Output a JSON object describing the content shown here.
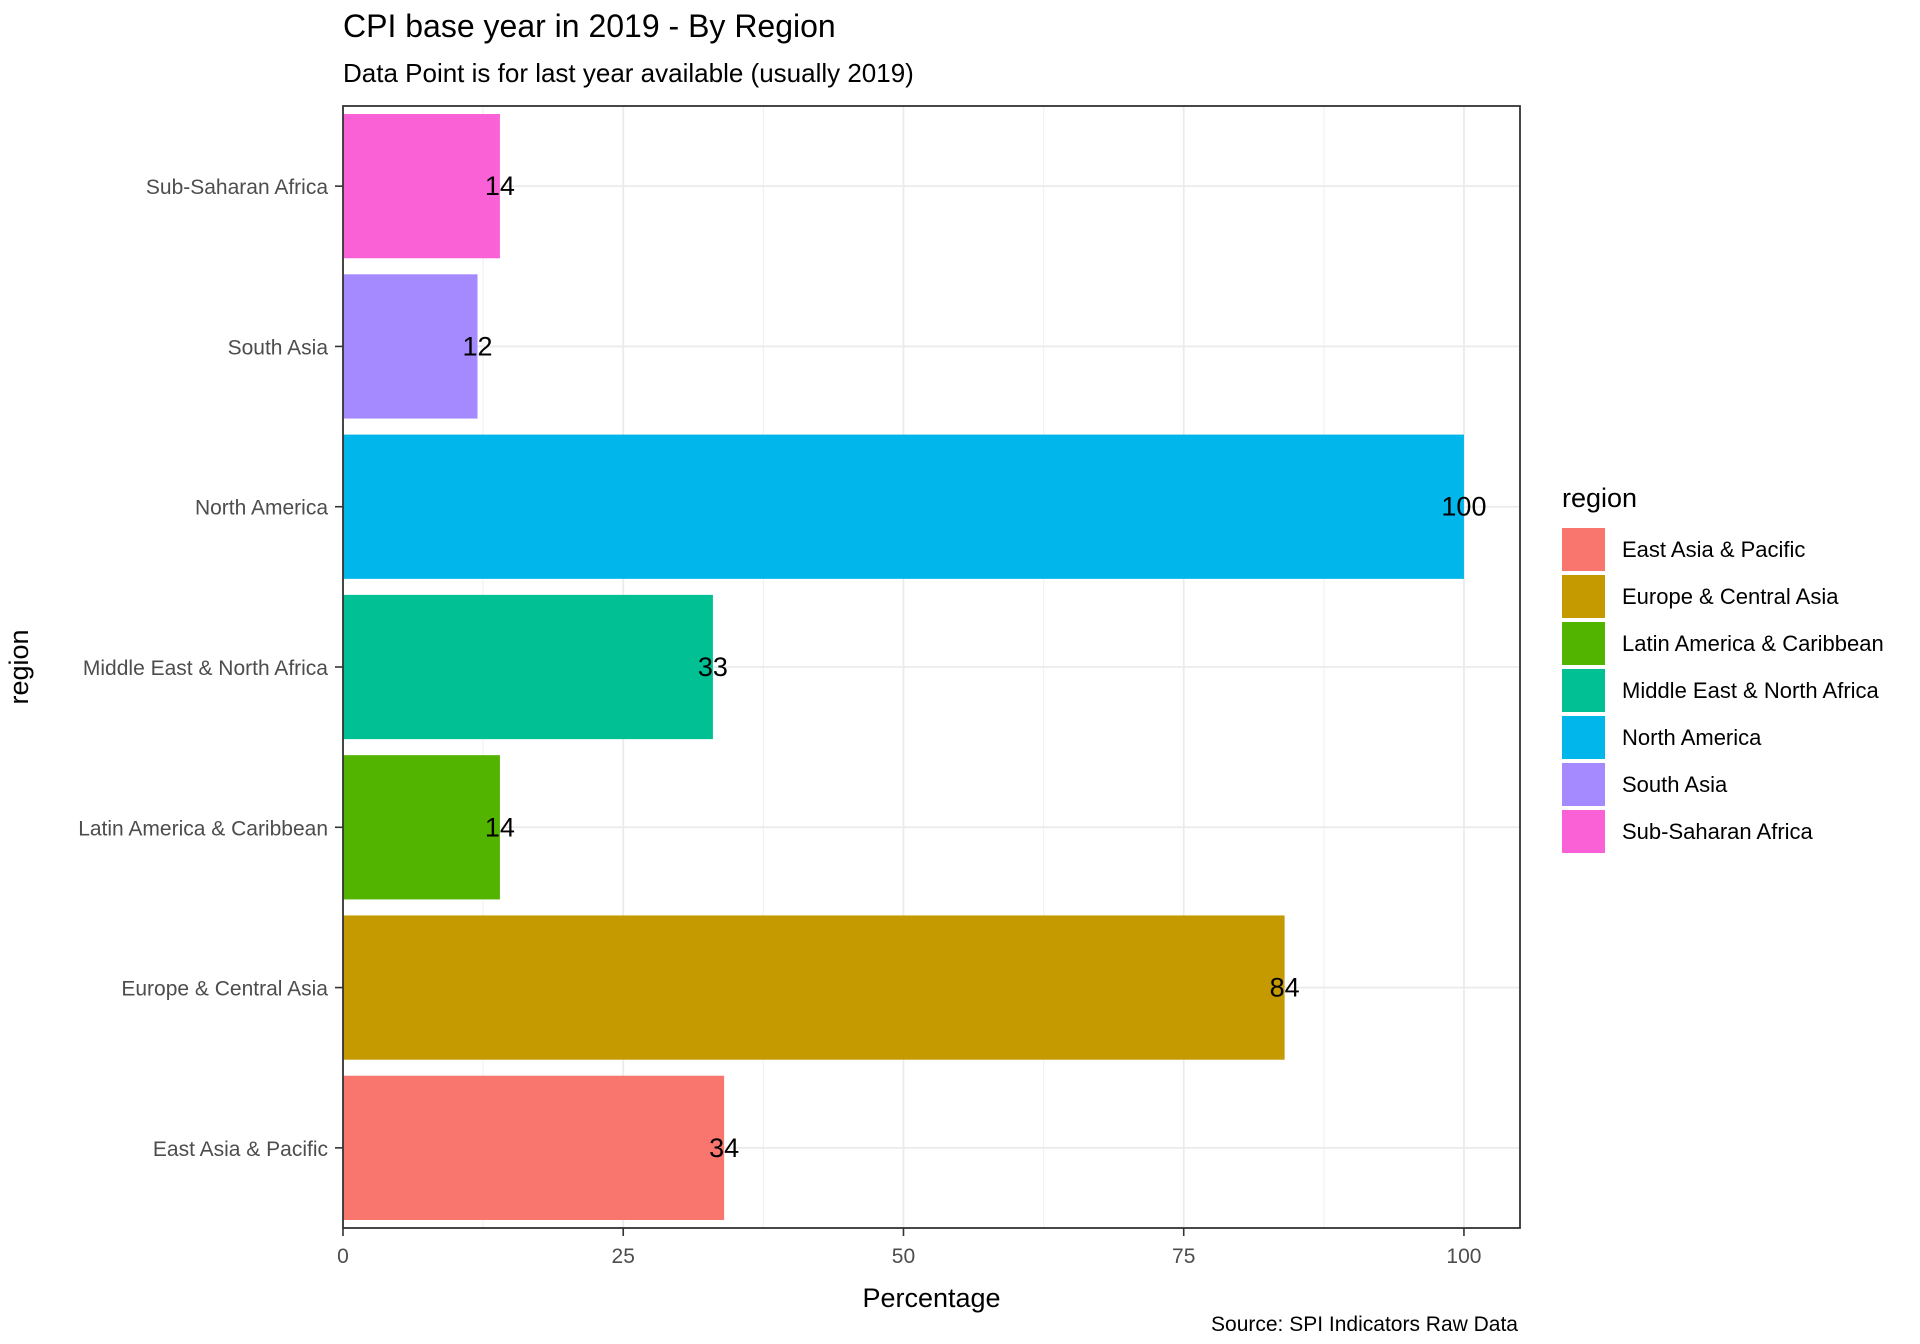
{
  "chart_data": {
    "type": "bar",
    "orientation": "horizontal",
    "title": "CPI base year in 2019 - By Region",
    "subtitle": "Data Point is for last year available (usually 2019)",
    "caption": "Source: SPI Indicators Raw Data",
    "xlabel": "Percentage",
    "ylabel": "region",
    "xlim": [
      0,
      105
    ],
    "x_ticks": [
      "0",
      "25",
      "50",
      "75",
      "100"
    ],
    "x_tick_values": [
      0,
      25,
      50,
      75,
      100
    ],
    "grid": true,
    "legend_title": "region",
    "legend_position": "right",
    "categories": [
      "East Asia & Pacific",
      "Europe & Central Asia",
      "Latin America & Caribbean",
      "Middle East & North Africa",
      "North America",
      "South Asia",
      "Sub-Saharan Africa"
    ],
    "values": [
      34,
      84,
      14,
      33,
      100,
      12,
      14
    ],
    "data_labels": [
      "34",
      "84",
      "14",
      "33",
      "100",
      "12",
      "14"
    ],
    "colors": [
      "#F8766D",
      "#C49A00",
      "#53B400",
      "#00C094",
      "#00B6EB",
      "#A58AFF",
      "#FB61D7"
    ]
  }
}
